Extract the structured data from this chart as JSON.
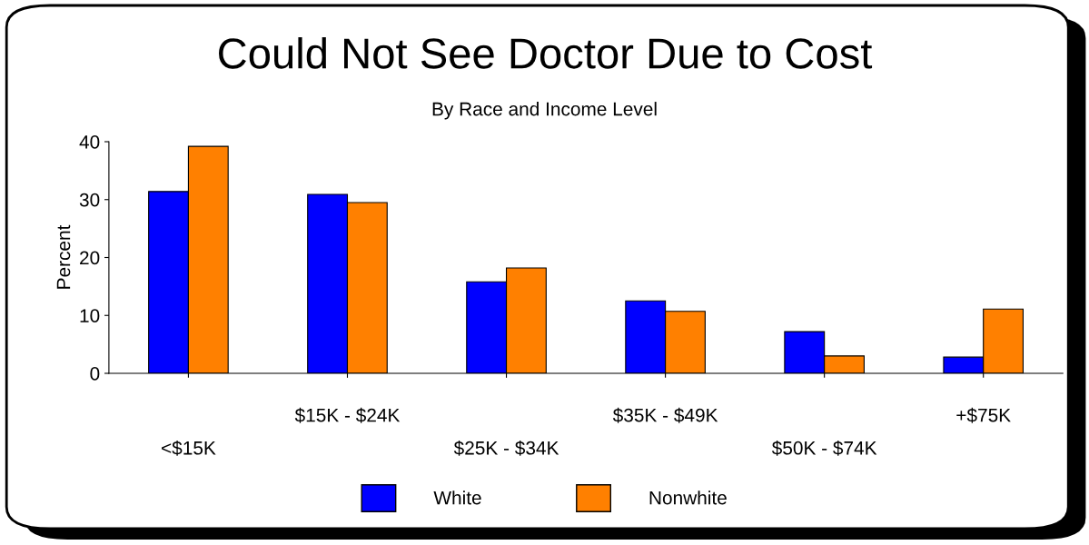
{
  "chart_data": {
    "type": "bar",
    "title": "Could Not See Doctor Due to Cost",
    "subtitle": "By Race and Income Level",
    "ylabel": "Percent",
    "categories": [
      "<$15K",
      "$15K - $24K",
      "$25K - $34K",
      "$35K - $49K",
      "$50K - $74K",
      "+$75K"
    ],
    "series": [
      {
        "name": "White",
        "color": "#0000ff",
        "values": [
          31.4,
          30.9,
          15.8,
          12.5,
          7.2,
          2.8
        ]
      },
      {
        "name": "Nonwhite",
        "color": "#ff8000",
        "values": [
          39.2,
          29.5,
          18.2,
          10.7,
          3.0,
          11.1
        ]
      }
    ],
    "ylim": [
      0,
      40
    ],
    "yticks": [
      0,
      10,
      20,
      30,
      40
    ],
    "grid": false,
    "legend": "bottom"
  }
}
